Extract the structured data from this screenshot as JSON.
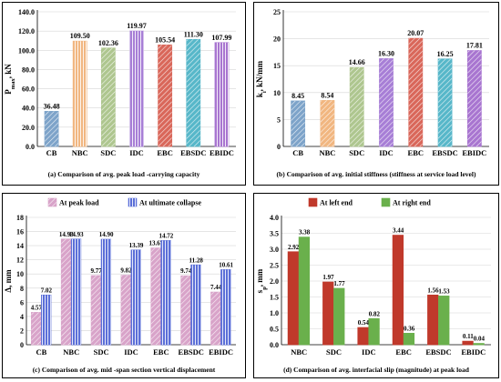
{
  "chart_data": [
    {
      "id": "a",
      "type": "bar",
      "caption": "(a) Comparison of avg. peak load -carrying capacity",
      "ylabel_main": "P",
      "ylabel_sub": "max",
      "ylabel_unit": ", kN",
      "categories": [
        "CB",
        "NBC",
        "SDC",
        "IDC",
        "EBC",
        "EBSDC",
        "EBIDC"
      ],
      "values": [
        36.48,
        109.5,
        102.36,
        119.97,
        105.54,
        111.3,
        107.99
      ],
      "labels": [
        "36.48",
        "109.50",
        "102.36",
        "119.97",
        "105.54",
        "111.30",
        "107.99"
      ],
      "colors": [
        "#7da3c9",
        "#f1b680",
        "#aec68f",
        "#a77ed6",
        "#d9675a",
        "#57b7c9",
        "#a875d0"
      ],
      "hatch": [
        "diag",
        "vert",
        "diag",
        "vert",
        "diag",
        "diag",
        "vert"
      ],
      "ylim": [
        0,
        140
      ],
      "yticks": [
        0,
        20,
        40,
        60,
        80,
        100,
        120,
        140
      ],
      "ytick_labels": [
        "0.0",
        "20.0",
        "40.0",
        "60.0",
        "80.0",
        "100.0",
        "120.0",
        "140.0"
      ]
    },
    {
      "id": "b",
      "type": "bar",
      "caption": "(b) Comparison of avg. initial stiffness (stiffness at service load level)",
      "ylabel_main": "k",
      "ylabel_sub": "i",
      "ylabel_unit": ", kN/mm",
      "categories": [
        "CB",
        "NBC",
        "SDC",
        "IDC",
        "EBC",
        "EBSDC",
        "EBIDC"
      ],
      "values": [
        8.45,
        8.54,
        14.66,
        16.3,
        20.07,
        16.25,
        17.81
      ],
      "labels": [
        "8.45",
        "8.54",
        "14.66",
        "16.30",
        "20.07",
        "16.25",
        "17.81"
      ],
      "colors": [
        "#7da3c9",
        "#f1b680",
        "#aec68f",
        "#a77ed6",
        "#d9675a",
        "#57b7c9",
        "#a875d0"
      ],
      "hatch": [
        "diag",
        "diag",
        "diag",
        "diag",
        "diag",
        "diag",
        "diag"
      ],
      "ylim": [
        0,
        25
      ],
      "yticks": [
        0,
        5,
        10,
        15,
        20,
        25
      ],
      "ytick_labels": [
        "0",
        "5",
        "10",
        "15",
        "20",
        "25"
      ]
    },
    {
      "id": "c",
      "type": "bar",
      "caption": "(c) Comparison of avg. mid -span section vertical displacement",
      "ylabel_main": "Δ, mm",
      "ylabel_sub": "",
      "ylabel_unit": "",
      "categories": [
        "CB",
        "NBC",
        "SDC",
        "IDC",
        "EBC",
        "EBSDC",
        "EBIDC"
      ],
      "series": [
        {
          "name": "At peak load",
          "color": "#d8a3c9",
          "hatch": "diag",
          "values": [
            4.57,
            14.93,
            9.77,
            9.82,
            13.67,
            9.74,
            7.44
          ],
          "labels": [
            "4.57",
            "14.93",
            "9.77",
            "9.82",
            "13.67",
            "9.74",
            "7.44"
          ]
        },
        {
          "name": "At ultimate collapse",
          "color": "#5b6fd8",
          "hatch": "vert",
          "values": [
            7.02,
            14.93,
            14.9,
            13.39,
            14.72,
            11.28,
            10.61
          ],
          "labels": [
            "7.02",
            "14.93",
            "14.90",
            "13.39",
            "14.72",
            "11.28",
            "10.61"
          ]
        }
      ],
      "ylim": [
        0,
        18
      ],
      "yticks": [
        0,
        2,
        4,
        6,
        8,
        10,
        12,
        14,
        16,
        18
      ],
      "ytick_labels": [
        "0",
        "2",
        "4",
        "6",
        "8",
        "10",
        "12",
        "14",
        "16",
        "18"
      ],
      "legend_position": "top"
    },
    {
      "id": "d",
      "type": "bar",
      "caption": "(d) Comparison of avg. interfacial slip (magnitude) at peak load",
      "ylabel_main": "s",
      "ylabel_sub": "p",
      "ylabel_unit": ", mm",
      "categories": [
        "NBC",
        "SDC",
        "IDC",
        "EBC",
        "EBSDC",
        "EBIDC"
      ],
      "series": [
        {
          "name": "At left end",
          "color": "#c0392b",
          "hatch": "none",
          "values": [
            2.92,
            1.97,
            0.54,
            3.44,
            1.56,
            0.11
          ],
          "labels": [
            "2.92",
            "1.97",
            "0.54",
            "3.44",
            "1.56",
            "0.11"
          ]
        },
        {
          "name": "At right end",
          "color": "#6ab04c",
          "hatch": "none",
          "values": [
            3.38,
            1.77,
            0.82,
            0.36,
            1.53,
            0.04
          ],
          "labels": [
            "3.38",
            "1.77",
            "0.82",
            "0.36",
            "1.53",
            "0.04"
          ]
        }
      ],
      "ylim": [
        0,
        4
      ],
      "yticks": [
        0,
        0.5,
        1,
        1.5,
        2,
        2.5,
        3,
        3.5,
        4
      ],
      "ytick_labels": [
        "0.0",
        "0.5",
        "1.0",
        "1.5",
        "2.0",
        "2.5",
        "3.0",
        "3.5",
        "4.0"
      ],
      "legend_position": "top"
    }
  ]
}
